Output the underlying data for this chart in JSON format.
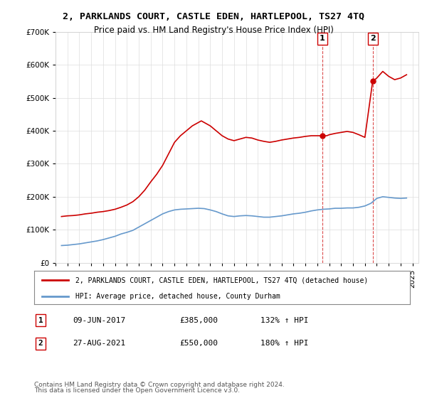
{
  "title": "2, PARKLANDS COURT, CASTLE EDEN, HARTLEPOOL, TS27 4TQ",
  "subtitle": "Price paid vs. HM Land Registry's House Price Index (HPI)",
  "legend_line1": "2, PARKLANDS COURT, CASTLE EDEN, HARTLEPOOL, TS27 4TQ (detached house)",
  "legend_line2": "HPI: Average price, detached house, County Durham",
  "sale1_date": "2017-06-09",
  "sale1_label": "1",
  "sale1_price": 385000,
  "sale1_hpi_pct": "132%",
  "sale1_display": "09-JUN-2017",
  "sale2_date": "2021-08-27",
  "sale2_label": "2",
  "sale2_price": 550000,
  "sale2_hpi_pct": "180%",
  "sale2_display": "27-AUG-2021",
  "footer1": "Contains HM Land Registry data © Crown copyright and database right 2024.",
  "footer2": "This data is licensed under the Open Government Licence v3.0.",
  "red_color": "#cc0000",
  "blue_color": "#6699cc",
  "dashed_color": "#cc0000",
  "background_color": "#ffffff",
  "grid_color": "#dddddd",
  "ylim": [
    0,
    700000
  ],
  "yticks": [
    0,
    100000,
    200000,
    300000,
    400000,
    500000,
    600000,
    700000
  ],
  "red_data": {
    "years": [
      1995.5,
      1996.0,
      1996.5,
      1997.0,
      1997.5,
      1998.0,
      1998.5,
      1999.0,
      1999.5,
      2000.0,
      2000.5,
      2001.0,
      2001.5,
      2002.0,
      2002.5,
      2003.0,
      2003.5,
      2004.0,
      2004.5,
      2005.0,
      2005.5,
      2006.0,
      2006.5,
      2007.0,
      2007.25,
      2007.5,
      2008.0,
      2008.5,
      2009.0,
      2009.5,
      2010.0,
      2010.5,
      2011.0,
      2011.5,
      2012.0,
      2012.5,
      2013.0,
      2013.5,
      2014.0,
      2014.5,
      2015.0,
      2015.5,
      2016.0,
      2016.5,
      2017.4,
      2017.6,
      2017.8,
      2018.0,
      2018.5,
      2019.0,
      2019.5,
      2020.0,
      2020.5,
      2021.0,
      2021.65,
      2022.0,
      2022.5,
      2023.0,
      2023.5,
      2024.0,
      2024.5
    ],
    "values": [
      140000,
      142000,
      143000,
      145000,
      148000,
      150000,
      153000,
      155000,
      158000,
      162000,
      168000,
      175000,
      185000,
      200000,
      220000,
      245000,
      268000,
      295000,
      330000,
      365000,
      385000,
      400000,
      415000,
      425000,
      430000,
      425000,
      415000,
      400000,
      385000,
      375000,
      370000,
      375000,
      380000,
      378000,
      372000,
      368000,
      365000,
      368000,
      372000,
      375000,
      378000,
      380000,
      383000,
      385000,
      385000,
      385000,
      385000,
      388000,
      392000,
      395000,
      398000,
      395000,
      388000,
      380000,
      550000,
      560000,
      580000,
      565000,
      555000,
      560000,
      570000
    ]
  },
  "blue_data": {
    "years": [
      1995.5,
      1996.0,
      1996.5,
      1997.0,
      1997.5,
      1998.0,
      1998.5,
      1999.0,
      1999.5,
      2000.0,
      2000.5,
      2001.0,
      2001.5,
      2002.0,
      2002.5,
      2003.0,
      2003.5,
      2004.0,
      2004.5,
      2005.0,
      2005.5,
      2006.0,
      2006.5,
      2007.0,
      2007.5,
      2008.0,
      2008.5,
      2009.0,
      2009.5,
      2010.0,
      2010.5,
      2011.0,
      2011.5,
      2012.0,
      2012.5,
      2013.0,
      2013.5,
      2014.0,
      2014.5,
      2015.0,
      2015.5,
      2016.0,
      2016.5,
      2017.0,
      2017.5,
      2018.0,
      2018.5,
      2019.0,
      2019.5,
      2020.0,
      2020.5,
      2021.0,
      2021.5,
      2022.0,
      2022.5,
      2023.0,
      2023.5,
      2024.0,
      2024.5
    ],
    "values": [
      52000,
      53000,
      55000,
      57000,
      60000,
      63000,
      66000,
      70000,
      75000,
      80000,
      87000,
      92000,
      98000,
      108000,
      118000,
      128000,
      138000,
      148000,
      155000,
      160000,
      162000,
      163000,
      164000,
      165000,
      164000,
      160000,
      155000,
      148000,
      142000,
      140000,
      142000,
      143000,
      142000,
      140000,
      138000,
      138000,
      140000,
      142000,
      145000,
      148000,
      150000,
      153000,
      157000,
      160000,
      162000,
      163000,
      165000,
      165000,
      166000,
      166000,
      168000,
      172000,
      180000,
      195000,
      200000,
      198000,
      196000,
      195000,
      196000
    ]
  }
}
